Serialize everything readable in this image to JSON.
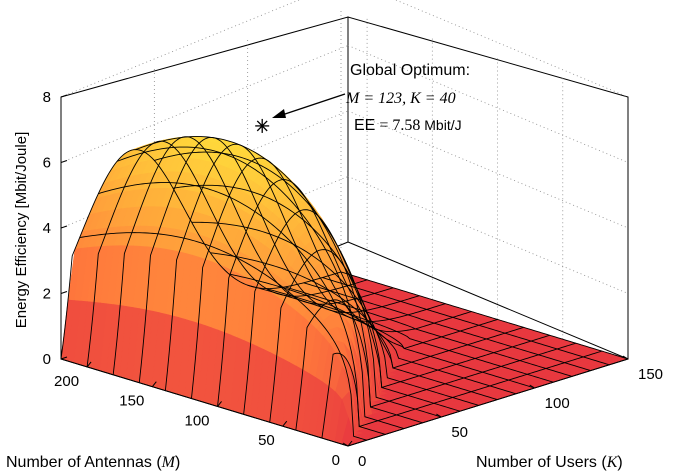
{
  "chart_data": {
    "type": "surface3d",
    "zlabel": "Energy Efficiency [Mbit/Joule]",
    "xlabel": {
      "text": "Number of Antennas (",
      "sym": "M",
      "close": ")"
    },
    "ylabel": {
      "text": "Number of Users (",
      "sym": "K",
      "close": ")"
    },
    "zlim": [
      0,
      8
    ],
    "z_ticks": [
      "0",
      "2",
      "4",
      "6",
      "8"
    ],
    "m_ticks": [
      "0",
      "50",
      "100",
      "150",
      "200"
    ],
    "k_ticks": [
      "0",
      "50",
      "100",
      "150"
    ],
    "m_range": [
      0,
      220
    ],
    "k_range": [
      0,
      150
    ],
    "grid": true,
    "colormap": [
      "#e8383f",
      "#ff7a3c",
      "#ffb53a",
      "#fff23c"
    ],
    "optimum": {
      "M": 123,
      "K": 40,
      "EE": 7.58
    },
    "annotation": {
      "title": "Global Optimum:",
      "line1": "M = 123, K = 40",
      "line2_prefix": "EE",
      "line2_value": " = 7.58",
      "line2_unit": " Mbit/J"
    }
  }
}
